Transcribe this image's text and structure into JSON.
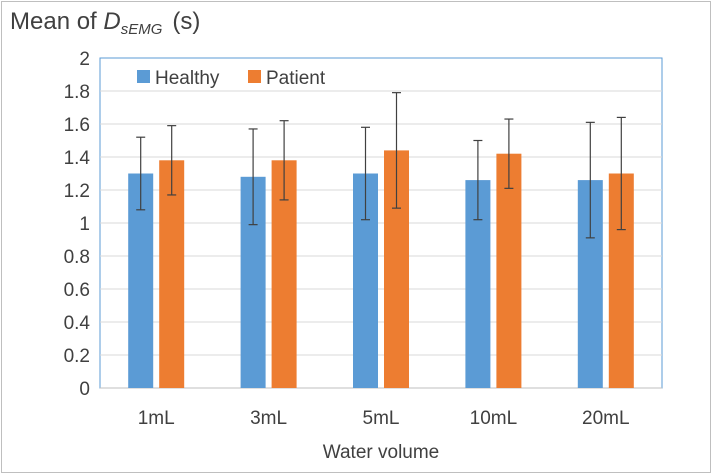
{
  "chart_data": {
    "type": "bar",
    "title": "",
    "ylabel": {
      "prefix": "Mean of ",
      "symbol": "D",
      "subscript": "sEMG",
      "unit": "(s)"
    },
    "xlabel": "Water volume",
    "categories": [
      "1mL",
      "3mL",
      "5mL",
      "10mL",
      "20mL"
    ],
    "ylim": [
      0,
      2
    ],
    "yticks": [
      "0",
      "0.2",
      "0.4",
      "0.6",
      "0.8",
      "1",
      "1.2",
      "1.4",
      "1.6",
      "1.8",
      "2"
    ],
    "grid": true,
    "legend_position": "top-left",
    "series": [
      {
        "name": "Healthy",
        "color": "#5b9bd5",
        "values": [
          1.3,
          1.28,
          1.3,
          1.26,
          1.26
        ],
        "errors": [
          0.22,
          0.29,
          0.28,
          0.24,
          0.35
        ]
      },
      {
        "name": "Patient",
        "color": "#ed7d31",
        "values": [
          1.38,
          1.38,
          1.44,
          1.42,
          1.3
        ],
        "errors": [
          0.21,
          0.24,
          0.35,
          0.21,
          0.34
        ]
      }
    ]
  }
}
